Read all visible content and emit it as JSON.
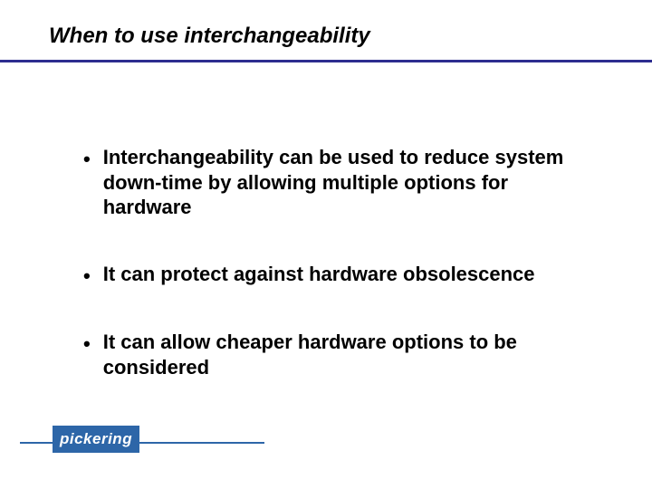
{
  "slide": {
    "title": "When to use interchangeability",
    "title_fontsize": 24,
    "title_color": "#000000",
    "divider_color": "#2d2d8f",
    "divider_thickness": 3,
    "background_color": "#ffffff",
    "bullets": [
      "Interchangeability can be used to reduce system down-time by allowing multiple options for hardware",
      "It can protect against hardware obsolescence",
      "It can allow cheaper hardware options to be considered"
    ],
    "bullet_fontsize": 22,
    "bullet_color": "#000000",
    "bullet_spacing": 46,
    "bullet_marker": "•"
  },
  "logo": {
    "text": "pickering",
    "box_color": "#2d66a8",
    "text_color": "#ffffff",
    "line_color": "#2d66a8",
    "fontsize": 17
  }
}
